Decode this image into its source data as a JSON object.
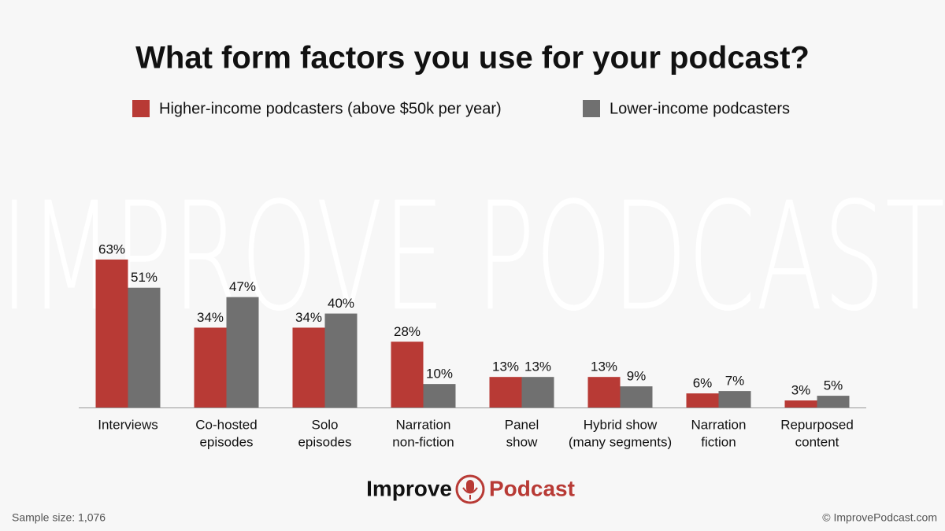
{
  "chart_data": {
    "type": "bar",
    "title": "What form factors you use for your podcast?",
    "watermark": "IMPROVE PODCAST",
    "categories": [
      [
        "Interviews"
      ],
      [
        "Co-hosted",
        "episodes"
      ],
      [
        "Solo",
        "episodes"
      ],
      [
        "Narration",
        "non-fiction"
      ],
      [
        "Panel",
        "show"
      ],
      [
        "Hybrid show",
        "(many segments)"
      ],
      [
        "Narration",
        "fiction"
      ],
      [
        "Repurposed",
        "content"
      ]
    ],
    "series": [
      {
        "name": "Higher-income podcasters (above $50k per year)",
        "color": "#b83a35",
        "values": [
          63,
          34,
          34,
          28,
          13,
          13,
          6,
          3
        ],
        "value_labels": [
          "63%",
          "34%",
          "34%",
          "28%",
          "13%",
          "13%",
          "6%",
          "3%"
        ]
      },
      {
        "name": "Lower-income podcasters",
        "color": "#707070",
        "values": [
          51,
          47,
          40,
          10,
          13,
          9,
          7,
          5
        ],
        "value_labels": [
          "51%",
          "47%",
          "40%",
          "10%",
          "13%",
          "9%",
          "7%",
          "5%"
        ]
      }
    ],
    "ylim": [
      0,
      70
    ],
    "logo": [
      "Improve",
      "Podcast"
    ],
    "footer_left": "Sample size: 1,076",
    "footer_right": "© ImprovePodcast.com"
  }
}
